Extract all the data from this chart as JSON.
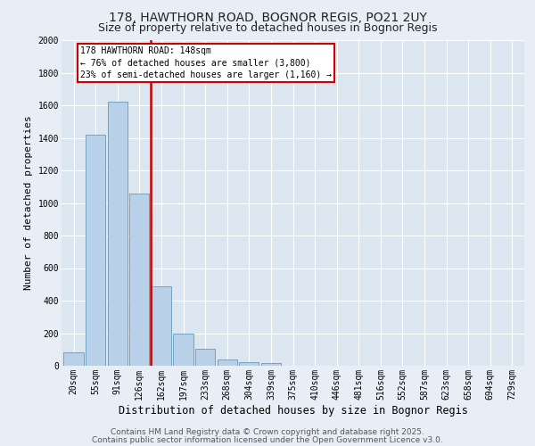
{
  "title1": "178, HAWTHORN ROAD, BOGNOR REGIS, PO21 2UY",
  "title2": "Size of property relative to detached houses in Bognor Regis",
  "xlabel": "Distribution of detached houses by size in Bognor Regis",
  "ylabel": "Number of detached properties",
  "categories": [
    "20sqm",
    "55sqm",
    "91sqm",
    "126sqm",
    "162sqm",
    "197sqm",
    "233sqm",
    "268sqm",
    "304sqm",
    "339sqm",
    "375sqm",
    "410sqm",
    "446sqm",
    "481sqm",
    "516sqm",
    "552sqm",
    "587sqm",
    "623sqm",
    "658sqm",
    "694sqm",
    "729sqm"
  ],
  "values": [
    80,
    1420,
    1620,
    1060,
    490,
    200,
    105,
    40,
    20,
    15,
    0,
    0,
    0,
    0,
    0,
    0,
    0,
    0,
    0,
    0,
    0
  ],
  "bar_color": "#b8d0e8",
  "bar_edge_color": "#6699bb",
  "vline_pos": 3.5,
  "vline_color": "#cc0000",
  "annotation_title": "178 HAWTHORN ROAD: 148sqm",
  "annotation_line1": "← 76% of detached houses are smaller (3,800)",
  "annotation_line2": "23% of semi-detached houses are larger (1,160) →",
  "annotation_box_color": "#ffffff",
  "annotation_box_edge": "#cc0000",
  "ylim": [
    0,
    2000
  ],
  "yticks": [
    0,
    200,
    400,
    600,
    800,
    1000,
    1200,
    1400,
    1600,
    1800,
    2000
  ],
  "background_color": "#e8eef5",
  "plot_bg_color": "#dce6f0",
  "footer1": "Contains HM Land Registry data © Crown copyright and database right 2025.",
  "footer2": "Contains public sector information licensed under the Open Government Licence v3.0.",
  "title_fontsize": 10,
  "subtitle_fontsize": 9,
  "xlabel_fontsize": 8.5,
  "ylabel_fontsize": 8,
  "tick_fontsize": 7,
  "footer_fontsize": 6.5
}
